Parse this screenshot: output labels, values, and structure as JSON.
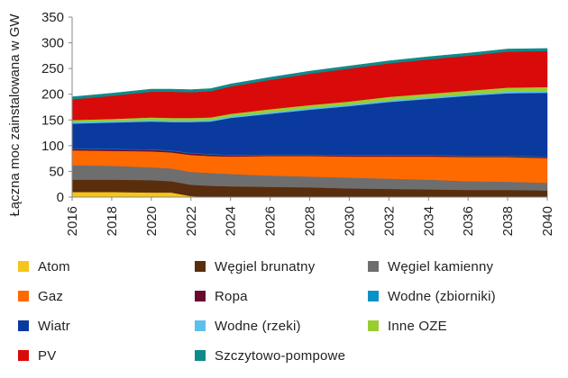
{
  "chart_data": {
    "type": "area",
    "stacked": true,
    "ylabel": "Łączna moc zainstalowana w GW",
    "xlabel": "",
    "ylim": [
      0,
      350
    ],
    "yticks": [
      0,
      50,
      100,
      150,
      200,
      250,
      300,
      350
    ],
    "xlim": [
      2016,
      2040
    ],
    "xticks": [
      2016,
      2018,
      2020,
      2022,
      2024,
      2026,
      2028,
      2030,
      2032,
      2034,
      2036,
      2038,
      2040
    ],
    "grid": false,
    "legend_position": "bottom",
    "x": [
      2016,
      2018,
      2020,
      2021,
      2022,
      2023,
      2024,
      2026,
      2028,
      2030,
      2032,
      2034,
      2036,
      2038,
      2040
    ],
    "series": [
      {
        "name": "Atom",
        "color": "#F5C518",
        "values": [
          10,
          10,
          9,
          9,
          2,
          0,
          0,
          0,
          0,
          0,
          0,
          0,
          0,
          0,
          0
        ]
      },
      {
        "name": "Węgiel brunatny",
        "color": "#5A2D0C",
        "values": [
          24,
          24,
          24,
          22,
          22,
          22,
          21,
          20,
          19,
          17,
          16,
          15,
          14,
          14,
          13
        ]
      },
      {
        "name": "Węgiel kamienny",
        "color": "#6E6E6E",
        "values": [
          28,
          27,
          25,
          25,
          25,
          25,
          24,
          22,
          21,
          21,
          20,
          19,
          17,
          16,
          15
        ]
      },
      {
        "name": "Gaz",
        "color": "#FF6A00",
        "values": [
          29,
          29,
          31,
          31,
          33,
          33,
          34,
          38,
          40,
          41,
          43,
          45,
          47,
          48,
          48
        ]
      },
      {
        "name": "Ropa",
        "color": "#6A0A2E",
        "values": [
          3,
          3,
          3,
          3,
          3,
          3,
          2,
          2,
          2,
          2,
          2,
          2,
          2,
          2,
          2
        ]
      },
      {
        "name": "Wodne (zbiorniki)",
        "color": "#0A92C8",
        "values": [
          1,
          1,
          1,
          1,
          1,
          1,
          1,
          1,
          1,
          1,
          1,
          1,
          1,
          1,
          1
        ]
      },
      {
        "name": "Wiatr",
        "color": "#0A3A9E",
        "values": [
          48,
          51,
          54,
          55,
          60,
          63,
          72,
          79,
          87,
          95,
          103,
          109,
          116,
          121,
          124
        ]
      },
      {
        "name": "Wodne (rzeki)",
        "color": "#5BC0EB",
        "values": [
          3,
          3,
          3,
          3,
          3,
          3,
          3,
          3,
          3,
          3,
          3,
          3,
          3,
          3,
          3
        ]
      },
      {
        "name": "Inne OZE",
        "color": "#9ACD32",
        "values": [
          4,
          4,
          5,
          5,
          5,
          5,
          5,
          6,
          6,
          6,
          7,
          7,
          7,
          8,
          8
        ]
      },
      {
        "name": "PV",
        "color": "#D90A0A",
        "values": [
          40,
          45,
          50,
          51,
          50,
          51,
          53,
          57,
          61,
          64,
          65,
          67,
          68,
          70,
          70
        ]
      },
      {
        "name": "Szczytowo-pompowe",
        "color": "#0F8A8A",
        "values": [
          5,
          5,
          5,
          5,
          5,
          5,
          5,
          5,
          5,
          5,
          5,
          5,
          5,
          5,
          5
        ]
      }
    ]
  }
}
